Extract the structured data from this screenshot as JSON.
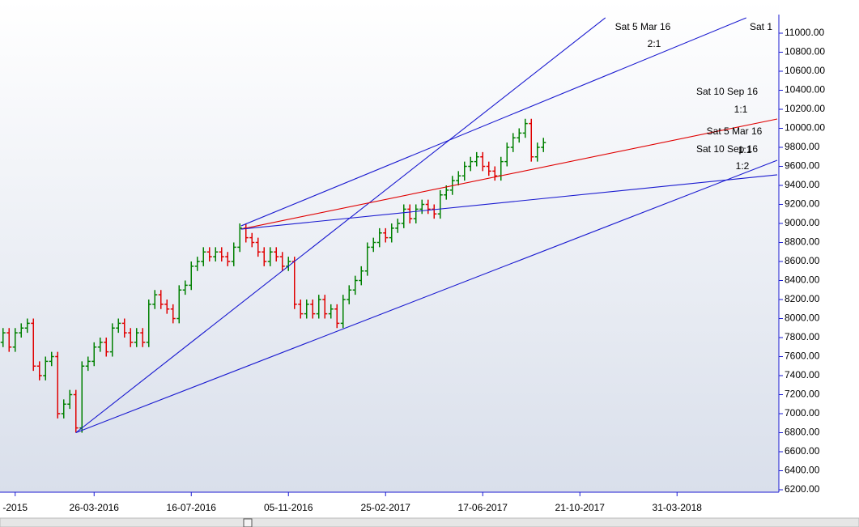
{
  "chart_data": {
    "type": "ohlc",
    "categories": [
      null,
      null,
      "-2015",
      null,
      null,
      null,
      null,
      null,
      null,
      null,
      null,
      null,
      null,
      null,
      null,
      "26-03-2016",
      null,
      null,
      null,
      null,
      null,
      null,
      null,
      null,
      null,
      null,
      null,
      null,
      null,
      null,
      null,
      "16-07-2016",
      null,
      null,
      null,
      null,
      null,
      null,
      null,
      null,
      null,
      null,
      null,
      null,
      null,
      null,
      null,
      "05-11-2016",
      null,
      null,
      null,
      null,
      null,
      null,
      null,
      null,
      null,
      null,
      null,
      null,
      null,
      null,
      null,
      "25-02-2017",
      null,
      null,
      null,
      null,
      null,
      null,
      null,
      null,
      null,
      null,
      null,
      null,
      null,
      null,
      null,
      "17-06-2017",
      null,
      null,
      null,
      null,
      null,
      null,
      null,
      null,
      null,
      null,
      null,
      null,
      null,
      null,
      null,
      "21-10-2017",
      null,
      null,
      null,
      null,
      null,
      null,
      null,
      null,
      null,
      null,
      null,
      null,
      null,
      null,
      null,
      "31-03-2018",
      null,
      null,
      null,
      null,
      null,
      null,
      null,
      null,
      null,
      null,
      null,
      null,
      null,
      null,
      null,
      null
    ],
    "open": [
      7750,
      7850,
      7700,
      7850,
      7900,
      7950,
      7500,
      7400,
      7550,
      7600,
      7000,
      7100,
      7200,
      6850,
      7500,
      7550,
      7700,
      7750,
      7650,
      7900,
      7950,
      7850,
      7750,
      7850,
      7750,
      8150,
      8250,
      8150,
      8100,
      8000,
      8300,
      8350,
      8550,
      8600,
      8700,
      8650,
      8700,
      8650,
      8600,
      8750,
      8950,
      8850,
      8800,
      8700,
      8600,
      8700,
      8650,
      8550,
      8600,
      8150,
      8050,
      8150,
      8050,
      8200,
      8050,
      8100,
      7950,
      8200,
      8300,
      8400,
      8500,
      8750,
      8800,
      8900,
      8850,
      8950,
      9000,
      9150,
      9050,
      9150,
      9200,
      9150,
      9100,
      9300,
      9350,
      9450,
      9500,
      9600,
      9650,
      9700,
      9600,
      9550,
      9500,
      9650,
      9800,
      9900,
      9950,
      10050,
      9700,
      9800,
      null,
      null,
      null,
      null,
      null,
      null,
      null,
      null,
      null,
      null,
      null,
      null,
      null,
      null,
      null,
      null,
      null,
      null,
      null,
      null,
      null,
      null,
      null,
      null,
      null,
      null,
      null,
      null,
      null,
      null,
      null,
      null,
      null,
      null,
      null,
      null,
      null,
      null
    ],
    "high": [
      7900,
      7900,
      7900,
      7950,
      8000,
      8000,
      7550,
      7600,
      7650,
      7650,
      7150,
      7250,
      7250,
      7550,
      7600,
      7750,
      7800,
      7800,
      7950,
      8000,
      8000,
      7900,
      7900,
      7900,
      8200,
      8300,
      8300,
      8200,
      8150,
      8350,
      8400,
      8600,
      8650,
      8750,
      8750,
      8750,
      8750,
      8700,
      8800,
      9000,
      9000,
      8900,
      8850,
      8750,
      8750,
      8750,
      8700,
      8650,
      8650,
      8200,
      8200,
      8200,
      8250,
      8250,
      8150,
      8150,
      8250,
      8350,
      8450,
      8550,
      8800,
      8850,
      8950,
      8950,
      9000,
      9050,
      9200,
      9200,
      9200,
      9250,
      9250,
      9200,
      9350,
      9400,
      9500,
      9550,
      9650,
      9700,
      9750,
      9750,
      9650,
      9600,
      9700,
      9850,
      9950,
      10000,
      10100,
      10100,
      9850,
      9900,
      null,
      null,
      null,
      null,
      null,
      null,
      null,
      null,
      null,
      null,
      null,
      null,
      null,
      null,
      null,
      null,
      null,
      null,
      null,
      null,
      null,
      null,
      null,
      null,
      null,
      null,
      null,
      null,
      null,
      null,
      null,
      null,
      null,
      null,
      null,
      null,
      null,
      null
    ],
    "low": [
      7700,
      7650,
      7650,
      7800,
      7850,
      7450,
      7350,
      7350,
      7500,
      6950,
      6950,
      7050,
      6800,
      6800,
      7450,
      7500,
      7650,
      7600,
      7600,
      7850,
      7800,
      7700,
      7700,
      7700,
      7700,
      8100,
      8100,
      8050,
      7950,
      7950,
      8250,
      8300,
      8500,
      8550,
      8600,
      8600,
      8600,
      8550,
      8550,
      8700,
      8800,
      8750,
      8650,
      8550,
      8550,
      8600,
      8500,
      8500,
      8100,
      8000,
      8000,
      8000,
      8000,
      8000,
      8000,
      7900,
      7900,
      8150,
      8250,
      8350,
      8450,
      8700,
      8750,
      8800,
      8800,
      8900,
      8950,
      9000,
      9000,
      9100,
      9100,
      9050,
      9050,
      9250,
      9300,
      9400,
      9450,
      9550,
      9600,
      9550,
      9500,
      9450,
      9450,
      9600,
      9750,
      9850,
      9900,
      9650,
      9650,
      9750,
      null,
      null,
      null,
      null,
      null,
      null,
      null,
      null,
      null,
      null,
      null,
      null,
      null,
      null,
      null,
      null,
      null,
      null,
      null,
      null,
      null,
      null,
      null,
      null,
      null,
      null,
      null,
      null,
      null,
      null,
      null,
      null,
      null,
      null,
      null,
      null,
      null,
      null
    ],
    "close": [
      7850,
      7700,
      7850,
      7900,
      7950,
      7500,
      7400,
      7550,
      7600,
      7000,
      7100,
      7200,
      6850,
      7500,
      7550,
      7700,
      7750,
      7650,
      7900,
      7950,
      7850,
      7750,
      7850,
      7750,
      8150,
      8250,
      8150,
      8100,
      8000,
      8300,
      8350,
      8550,
      8600,
      8700,
      8650,
      8700,
      8650,
      8600,
      8750,
      8950,
      8850,
      8800,
      8700,
      8600,
      8700,
      8650,
      8550,
      8600,
      8150,
      8050,
      8150,
      8050,
      8200,
      8050,
      8100,
      7950,
      8200,
      8300,
      8400,
      8500,
      8750,
      8800,
      8900,
      8850,
      8950,
      9000,
      9150,
      9050,
      9150,
      9200,
      9150,
      9100,
      9300,
      9350,
      9450,
      9500,
      9600,
      9650,
      9700,
      9600,
      9550,
      9500,
      9650,
      9800,
      9900,
      9950,
      10050,
      9700,
      9800,
      9850,
      null,
      null,
      null,
      null,
      null,
      null,
      null,
      null,
      null,
      null,
      null,
      null,
      null,
      null,
      null,
      null,
      null,
      null,
      null,
      null,
      null,
      null,
      null,
      null,
      null,
      null,
      null,
      null,
      null,
      null,
      null,
      null,
      null,
      null,
      null,
      null,
      null,
      null
    ],
    "up_color": "#008000",
    "down_color": "#e00000",
    "lines": [
      {
        "from": [
          12,
          6800
        ],
        "to": [
          99.2,
          11162
        ],
        "color": "#1a1ad0"
      },
      {
        "from": [
          12,
          6800
        ],
        "to": [
          127.5,
          9664
        ],
        "color": "#1a1ad0"
      },
      {
        "from": [
          39.2,
          8974
        ],
        "to": [
          122.4,
          11162
        ],
        "color": "#1a1ad0"
      },
      {
        "from": [
          39.2,
          8940
        ],
        "to": [
          127.5,
          10098
        ],
        "color": "#e00000"
      },
      {
        "from": [
          39.2,
          8940
        ],
        "to": [
          127.5,
          9511
        ],
        "color": "#1a1ad0"
      }
    ],
    "annotations": [
      "Sat 5 Mar 16",
      "2:1",
      "Sat 1",
      "Sat 10 Sep 16",
      "1:1",
      "Sat 5 Mar 16",
      "1:1",
      "Sat 10 Sep 16",
      "1:2"
    ],
    "ylim": [
      6200,
      11000
    ],
    "yticks": [
      {
        "value": 6200,
        "label": "6200.00"
      },
      {
        "value": 6400,
        "label": "6400.00"
      },
      {
        "value": 6600,
        "label": "6600.00"
      },
      {
        "value": 6800,
        "label": "6800.00"
      },
      {
        "value": 7000,
        "label": "7000.00"
      },
      {
        "value": 7200,
        "label": "7200.00"
      },
      {
        "value": 7400,
        "label": "7400.00"
      },
      {
        "value": 7600,
        "label": "7600.00"
      },
      {
        "value": 7800,
        "label": "7800.00"
      },
      {
        "value": 8000,
        "label": "8000.00"
      },
      {
        "value": 8200,
        "label": "8200.00"
      },
      {
        "value": 8400,
        "label": "8400.00"
      },
      {
        "value": 8600,
        "label": "8600.00"
      },
      {
        "value": 8800,
        "label": "8800.00"
      },
      {
        "value": 9000,
        "label": "9000.00"
      },
      {
        "value": 9200,
        "label": "9200.00"
      },
      {
        "value": 9400,
        "label": "9400.00"
      },
      {
        "value": 9600,
        "label": "9600.00"
      },
      {
        "value": 9800,
        "label": "9800.00"
      },
      {
        "value": 10000,
        "label": "10000.00"
      },
      {
        "value": 10200,
        "label": "10200.00"
      },
      {
        "value": 10400,
        "label": "10400.00"
      },
      {
        "value": 10600,
        "label": "10600.00"
      },
      {
        "value": 10800,
        "label": "10800.00"
      },
      {
        "value": 11000,
        "label": "11000.00"
      }
    ]
  }
}
